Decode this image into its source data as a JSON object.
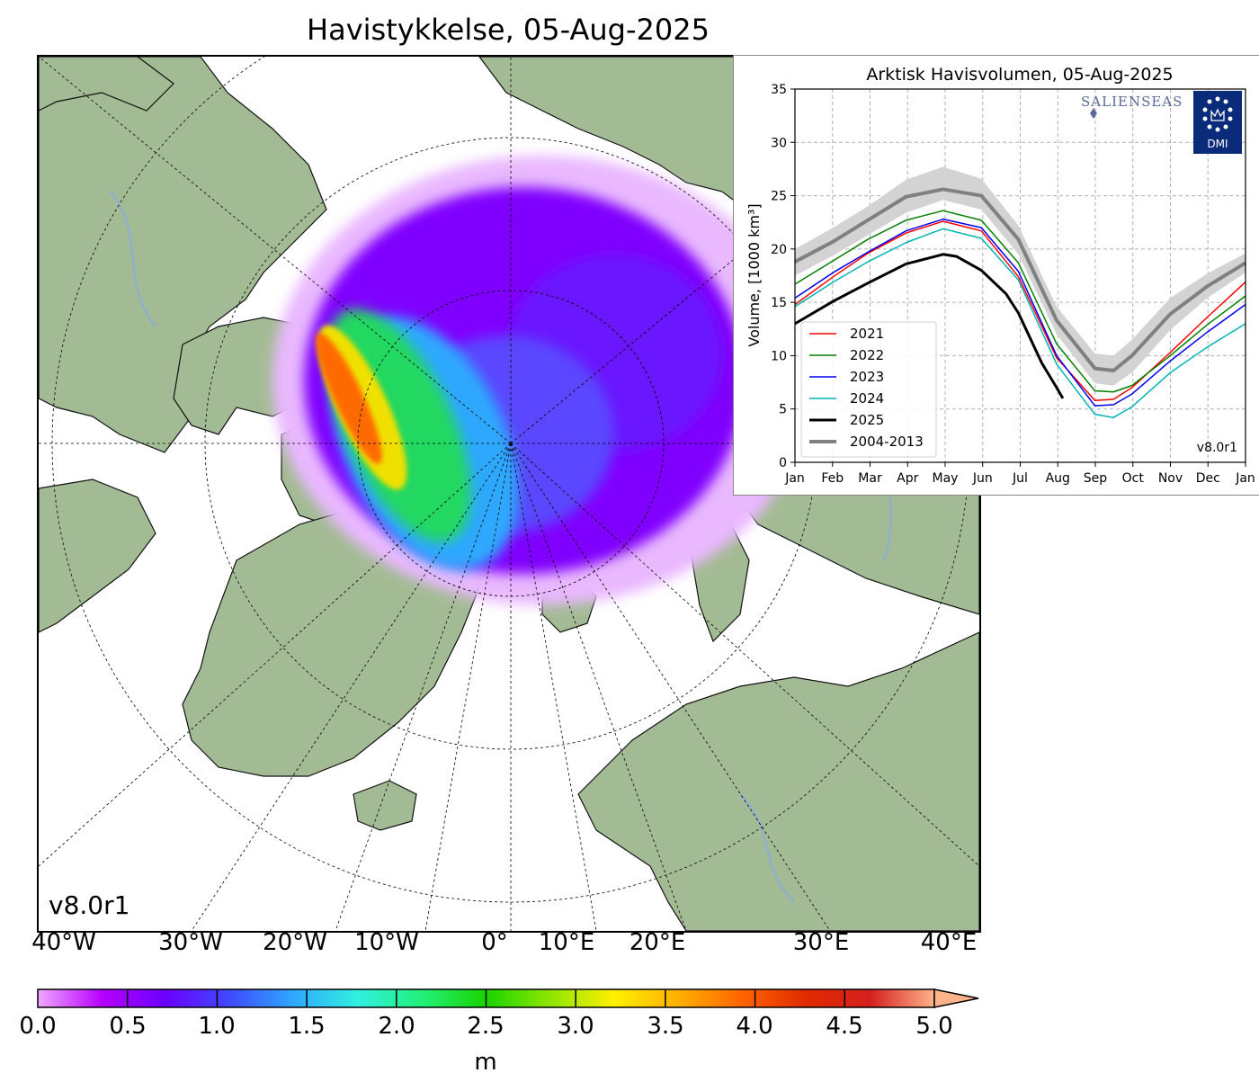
{
  "map": {
    "title": "Havistykkelse, 05-Aug-2025",
    "version_label": "v8.0r1",
    "lon_labels": [
      "40°W",
      "30°W",
      "20°W",
      "10°W",
      "0°",
      "10°E",
      "20°E",
      "30°E",
      "40°E"
    ],
    "colors": {
      "land": "#a3bb94",
      "ocean": "#ffffff",
      "rivers": "#8aaedc"
    },
    "colorbar": {
      "ticks": [
        "0.0",
        "0.5",
        "1.0",
        "1.5",
        "2.0",
        "2.5",
        "3.0",
        "3.5",
        "4.0",
        "4.5",
        "5.0"
      ],
      "unit": "m",
      "range": [
        0,
        5
      ],
      "extend": "max",
      "colors": [
        "#f0a8ff",
        "#b700ff",
        "#6a00ff",
        "#3f4aff",
        "#2fa8ff",
        "#30f0e0",
        "#22f07a",
        "#18d400",
        "#8ee600",
        "#fff000",
        "#ffb000",
        "#ff6400",
        "#e02a00",
        "#d52020",
        "#ffb38a"
      ]
    }
  },
  "chart_data": {
    "type": "line",
    "title": "Arktisk Havisvolumen, 05-Aug-2025",
    "ylabel": "Volume, [1000 km³]",
    "xlabel": "",
    "x_ticks": [
      "Jan",
      "Feb",
      "Mar",
      "Apr",
      "May",
      "Jun",
      "Jul",
      "Aug",
      "Sep",
      "Oct",
      "Nov",
      "Dec",
      "Jan"
    ],
    "y_ticks": [
      "0",
      "5",
      "10",
      "15",
      "20",
      "25",
      "30",
      "35"
    ],
    "ylim": [
      0,
      35
    ],
    "xlim_days": [
      0,
      365
    ],
    "grid": true,
    "legend_position": "lower-left",
    "version_label": "v8.0r1",
    "logos": {
      "salienseas": "SALIENSEAS",
      "dmi": "DMI"
    },
    "band": {
      "name": "2004-2013",
      "day": [
        0,
        31,
        59,
        90,
        120,
        151,
        181,
        212,
        243,
        258,
        273,
        304,
        334,
        365
      ],
      "low": [
        17.5,
        19.4,
        21.3,
        23.4,
        24.6,
        23.7,
        19.5,
        12.0,
        7.4,
        7.2,
        8.4,
        12.4,
        15.4,
        17.8
      ],
      "high": [
        20.0,
        22.0,
        24.0,
        26.5,
        27.7,
        26.6,
        22.2,
        14.6,
        10.2,
        10.0,
        11.5,
        15.4,
        17.7,
        19.6
      ]
    },
    "series": [
      {
        "name": "2021",
        "color": "#ff0000",
        "width": 1.5,
        "day": [
          0,
          31,
          59,
          90,
          120,
          151,
          181,
          212,
          243,
          258,
          273,
          304,
          334,
          365
        ],
        "values": [
          14.8,
          17.4,
          19.6,
          21.5,
          22.6,
          21.7,
          17.4,
          9.8,
          5.8,
          5.9,
          7.0,
          10.3,
          13.6,
          16.9
        ]
      },
      {
        "name": "2022",
        "color": "#008000",
        "width": 1.5,
        "day": [
          0,
          31,
          59,
          90,
          120,
          151,
          181,
          212,
          243,
          258,
          273,
          304,
          334,
          365
        ],
        "values": [
          16.7,
          18.9,
          20.9,
          22.7,
          23.6,
          22.7,
          18.7,
          11.1,
          6.7,
          6.6,
          7.2,
          10.0,
          12.9,
          15.6
        ]
      },
      {
        "name": "2023",
        "color": "#0000ee",
        "width": 1.5,
        "day": [
          0,
          31,
          59,
          90,
          120,
          151,
          181,
          212,
          243,
          258,
          273,
          304,
          334,
          365
        ],
        "values": [
          15.4,
          17.8,
          19.7,
          21.7,
          22.8,
          22.0,
          17.9,
          10.0,
          5.3,
          5.4,
          6.4,
          9.5,
          12.2,
          14.8
        ]
      },
      {
        "name": "2024",
        "color": "#00b3b3",
        "width": 1.5,
        "day": [
          0,
          31,
          59,
          90,
          120,
          151,
          181,
          212,
          243,
          258,
          273,
          304,
          334,
          365
        ],
        "values": [
          14.6,
          16.9,
          18.8,
          20.6,
          21.9,
          21.0,
          17.1,
          9.2,
          4.5,
          4.2,
          5.2,
          8.4,
          10.8,
          13.0
        ]
      },
      {
        "name": "2025",
        "color": "#000000",
        "width": 3,
        "day": [
          0,
          31,
          59,
          90,
          120,
          131,
          151,
          171,
          181,
          200,
          212,
          217
        ],
        "values": [
          13.0,
          15.1,
          16.8,
          18.6,
          19.5,
          19.3,
          18.0,
          15.8,
          14.0,
          9.3,
          7.0,
          6.0
        ]
      },
      {
        "name": "2004-2013",
        "color": "#808080",
        "width": 4,
        "day": [
          0,
          31,
          59,
          90,
          120,
          151,
          181,
          212,
          243,
          258,
          273,
          304,
          334,
          365
        ],
        "values": [
          18.8,
          20.7,
          22.7,
          24.9,
          25.6,
          25.0,
          20.9,
          13.3,
          8.8,
          8.6,
          10.0,
          13.9,
          16.5,
          18.7
        ]
      }
    ]
  }
}
